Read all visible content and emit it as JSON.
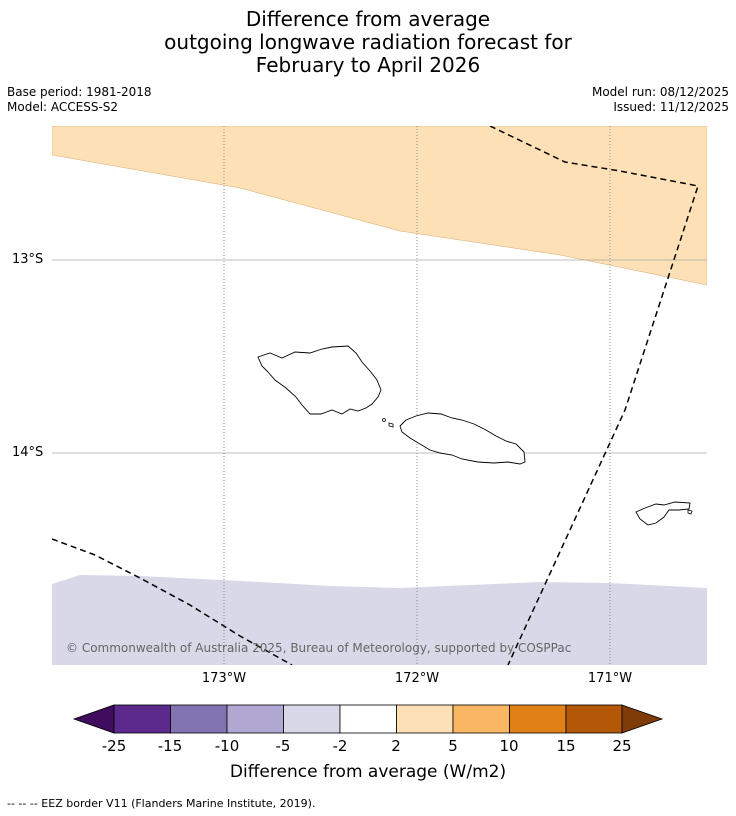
{
  "title": {
    "line1": "Difference from average",
    "line2": "outgoing longwave radiation forecast for",
    "line3": "February to April 2026"
  },
  "meta": {
    "base_period": "Base period: 1981-2018",
    "model": "Model: ACCESS-S2",
    "model_run": "Model run: 08/12/2025",
    "issued": "Issued: 11/12/2025"
  },
  "map": {
    "latitude_labels": [
      "13°S",
      "14°S"
    ],
    "longitude_labels": [
      "173°W",
      "172°W",
      "171°W"
    ],
    "copyright": "© Commonwealth of Australia 2025, Bureau of Meteorology, supported by COSPPac",
    "colors": {
      "positive_2_5": "#fde0b6",
      "negative_2_5": "#d8d8e9"
    }
  },
  "colorbar": {
    "label": "Difference from average (W/m2)",
    "ticks": [
      "-25",
      "-15",
      "-10",
      "-5",
      "-2",
      "2",
      "5",
      "10",
      "15",
      "25"
    ],
    "colors": [
      "#3f0c5e",
      "#5b2a8c",
      "#8274b3",
      "#b0a8d2",
      "#d8d8e9",
      "#ffffff",
      "#fde0b6",
      "#f9b764",
      "#e08017",
      "#b45807",
      "#7f3b08"
    ]
  },
  "footnote": "--  --  -- EEZ border V11 (Flanders Marine Institute, 2019)."
}
